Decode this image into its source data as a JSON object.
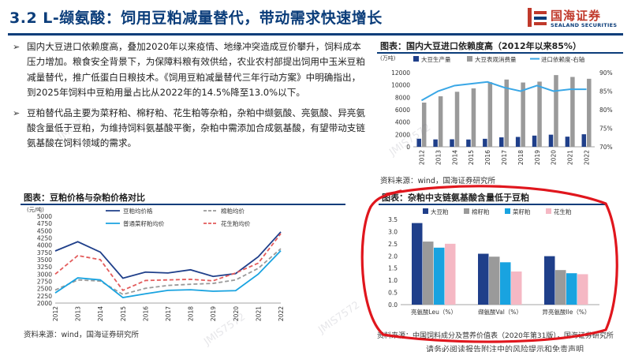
{
  "header": {
    "title": "3.2 L-缬氨酸：饲用豆粕减量替代，带动需求快速增长",
    "logo_cn": "国海证券",
    "logo_en": "SEALAND SECURITIES"
  },
  "bullets": [
    "国内大豆进口依赖度高，叠加2020年以来疫情、地缘冲突造成豆价攀升，饲料成本压力增加。粮食安全背景下，为保障料粮有效供给，农业农村部提出饲用中玉米豆粕减量替代，推广低蛋白日粮技术。《饲用豆粕减量替代三年行动方案》中明确指出，到2025年饲料中豆粕用量占比从2022年的14.5%降至13.0%以下。",
    "豆粕替代品主要为菜籽粕、棉籽粕、花生粕等杂粕，杂粕中缬氨酸、亮氨酸、异亮氨酸含量低于豆粕，为维持饲料氨基酸平衡，杂粕中需添加合成氨基酸，有望带动支链氨基酸在饲料领域的需求。"
  ],
  "charts": {
    "c1": {
      "title": "图表：国内大豆进口依赖度高（2012年以来85%）",
      "unit_left": "(万吨)",
      "source": "资料来源：wind，国海证券研究所",
      "legend": [
        "大豆生产量",
        "大豆表观消费量",
        "进口依赖度-右轴"
      ]
    },
    "c2": {
      "title": "图表：豆粕价格与杂粕价格对比",
      "unit_left": "(元/吨)",
      "source": "资料来源：wind，国海证券研究所",
      "legend": [
        "豆粕均价格",
        "棉粕均价",
        "普通菜籽粕均价",
        "花生粕均价"
      ]
    },
    "c3": {
      "title": "图表：杂粕中支链氨基酸含量低于豆粕",
      "source": "资料来源：中国饲料成分及营养价值表（2020年第31版），国海证券研究所",
      "legend": [
        "大豆粕",
        "棉籽粕",
        "菜籽粕",
        "花生粕"
      ]
    }
  },
  "watermarks": [
    "JMIS7572",
    "JMIS7572",
    "JMIS7572",
    "JMIS7572"
  ],
  "footer_fragment": "请务必阅读报告附注中的风险提示和免责声明",
  "colors": {
    "navy": "#0b3d7a",
    "dark_blue": "#1f3f8a",
    "gray_bar": "#9a9a9a",
    "light_blue": "#3aa7e6",
    "cyan": "#19a3e0",
    "red_dash": "#e35b5b",
    "pink": "#f5b8c4",
    "ring_red": "#e0161d"
  },
  "chart_data": [
    {
      "type": "bar",
      "title": "图表：国内大豆进口依赖度高（2012年以来85%）",
      "ylabel": "(万吨)",
      "categories": [
        "2012",
        "2013",
        "2014",
        "2015",
        "2016",
        "2017",
        "2018",
        "2019",
        "2020",
        "2021",
        "2022"
      ],
      "series": [
        {
          "name": "大豆生产量",
          "kind": "bar",
          "axis": "left",
          "values": [
            1305,
            1195,
            1215,
            1179,
            1294,
            1528,
            1597,
            1810,
            1960,
            1640,
            2028
          ]
        },
        {
          "name": "大豆表观消费量",
          "kind": "bar",
          "axis": "left",
          "values": [
            7150,
            8170,
            8900,
            9450,
            10450,
            10880,
            10400,
            10540,
            11600,
            11300,
            11000
          ]
        },
        {
          "name": "进口依赖度-右轴",
          "kind": "line",
          "axis": "right",
          "values": [
            82.5,
            85.0,
            86.5,
            87.0,
            87.5,
            86.0,
            85.0,
            86.5,
            85.0,
            85.5,
            85.5
          ]
        }
      ],
      "ylim": [
        0,
        12000
      ],
      "yticks": [
        0,
        2000,
        4000,
        6000,
        8000,
        10000,
        12000
      ],
      "y2lim": [
        70,
        90
      ],
      "y2ticks": [
        "70%",
        "75%",
        "80%",
        "85%",
        "90%"
      ],
      "legend_position": "top"
    },
    {
      "type": "line",
      "title": "图表：豆粕价格与杂粕价格对比",
      "ylabel": "(元/吨)",
      "categories": [
        "2012",
        "2013",
        "2014",
        "2015",
        "2016",
        "2017",
        "2018",
        "2019",
        "2020",
        "2021",
        "2022"
      ],
      "series": [
        {
          "name": "豆粕均价格",
          "style": "solid",
          "color": "#1f3f8a",
          "values": [
            3800,
            4120,
            3760,
            2860,
            3070,
            3040,
            3150,
            2920,
            3020,
            3600,
            4460
          ]
        },
        {
          "name": "棉粕均价",
          "style": "dashed",
          "color": "#9a9a9a",
          "values": [
            2450,
            2800,
            2760,
            2300,
            2510,
            2610,
            2650,
            2680,
            2800,
            3200,
            3880
          ]
        },
        {
          "name": "普通菜籽粕均价",
          "style": "solid",
          "color": "#19a3e0",
          "values": [
            2350,
            2870,
            2800,
            2190,
            2320,
            2440,
            2460,
            2410,
            2430,
            3000,
            3810
          ]
        },
        {
          "name": "花生粕均价",
          "style": "dashed",
          "color": "#e35b5b",
          "values": [
            3000,
            3640,
            3500,
            2440,
            2780,
            2800,
            2820,
            2770,
            3040,
            3380,
            4400
          ]
        }
      ],
      "ylim": [
        2000,
        5000
      ],
      "yticks": [
        2000,
        2250,
        2500,
        2750,
        3000,
        3250,
        3500,
        3750,
        4000,
        4250,
        4500,
        4750,
        5000
      ],
      "legend_position": "top"
    },
    {
      "type": "bar",
      "title": "图表：杂粕中支链氨基酸含量低于豆粕",
      "categories": [
        "亮氨酸Leu（%）",
        "缬氨酸Val（%）",
        "异亮氨酸Ile（%）"
      ],
      "series": [
        {
          "name": "大豆粕",
          "values": [
            3.35,
            2.09,
            1.99
          ]
        },
        {
          "name": "棉籽粕",
          "values": [
            2.59,
            1.97,
            1.42
          ]
        },
        {
          "name": "菜籽粕",
          "values": [
            2.34,
            1.74,
            1.29
          ]
        },
        {
          "name": "花生粕",
          "values": [
            2.5,
            1.36,
            1.25
          ]
        }
      ],
      "ylim": [
        0,
        3.5
      ],
      "yticks": [
        0.0,
        0.5,
        1.0,
        1.5,
        2.0,
        2.5,
        3.0,
        3.5
      ],
      "legend_position": "top"
    }
  ]
}
